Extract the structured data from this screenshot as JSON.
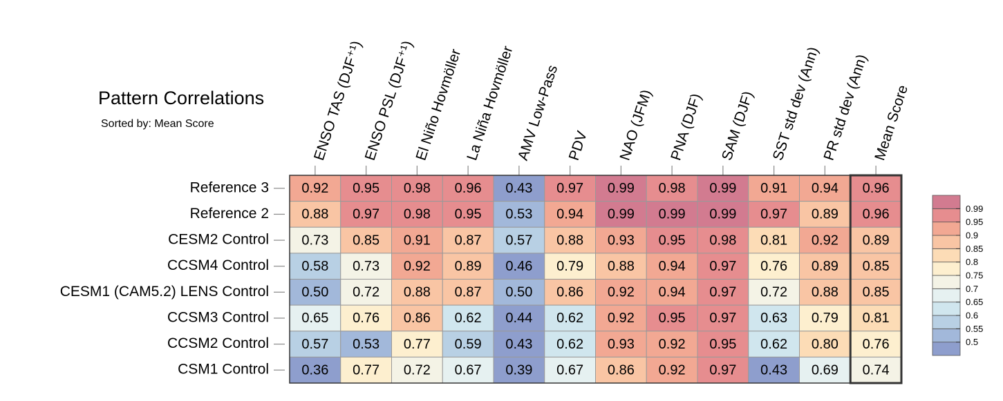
{
  "chart_data": {
    "type": "heatmap",
    "title": "Pattern Correlations",
    "subtitle": "Sorted by: Mean Score",
    "categories": [
      "ENSO TAS (DJF⁺¹)",
      "ENSO PSL (DJF⁺¹)",
      "El Niño Hovmöller",
      "La Niña Hovmöller",
      "AMV Low-Pass",
      "PDV",
      "NAO (JFM)",
      "PNA (DJF)",
      "SAM (DJF)",
      "SST std dev (Ann)",
      "PR std dev (Ann)",
      "Mean Score"
    ],
    "series": [
      {
        "name": "Reference 3",
        "values": [
          0.92,
          0.95,
          0.98,
          0.96,
          0.43,
          0.97,
          0.99,
          0.98,
          0.99,
          0.91,
          0.94,
          0.96
        ],
        "value_labels": [
          "0.92",
          "0.95",
          "0.98",
          "0.96",
          "0.43",
          "0.97",
          "0.99",
          "0.98",
          "0.99",
          "0.91",
          "0.94",
          "0.96"
        ]
      },
      {
        "name": "Reference 2",
        "values": [
          0.88,
          0.97,
          0.98,
          0.95,
          0.53,
          0.94,
          0.99,
          0.99,
          0.99,
          0.97,
          0.89,
          0.96
        ],
        "value_labels": [
          "0.88",
          "0.97",
          "0.98",
          "0.95",
          "0.53",
          "0.94",
          "0.99",
          "0.99",
          "0.99",
          "0.97",
          "0.89",
          "0.96"
        ]
      },
      {
        "name": "CESM2 Control",
        "values": [
          0.73,
          0.85,
          0.91,
          0.87,
          0.57,
          0.88,
          0.93,
          0.95,
          0.98,
          0.81,
          0.92,
          0.89
        ],
        "value_labels": [
          "0.73",
          "0.85",
          "0.91",
          "0.87",
          "0.57",
          "0.88",
          "0.93",
          "0.95",
          "0.98",
          "0.81",
          "0.92",
          "0.89"
        ]
      },
      {
        "name": "CCSM4 Control",
        "values": [
          0.58,
          0.73,
          0.92,
          0.89,
          0.46,
          0.79,
          0.88,
          0.94,
          0.97,
          0.76,
          0.89,
          0.85
        ],
        "value_labels": [
          "0.58",
          "0.73",
          "0.92",
          "0.89",
          "0.46",
          "0.79",
          "0.88",
          "0.94",
          "0.97",
          "0.76",
          "0.89",
          "0.85"
        ]
      },
      {
        "name": "CESM1 (CAM5.2) LENS Control",
        "values": [
          0.5,
          0.72,
          0.88,
          0.87,
          0.5,
          0.86,
          0.92,
          0.94,
          0.97,
          0.72,
          0.88,
          0.85
        ],
        "value_labels": [
          "0.50",
          "0.72",
          "0.88",
          "0.87",
          "0.50",
          "0.86",
          "0.92",
          "0.94",
          "0.97",
          "0.72",
          "0.88",
          "0.85"
        ]
      },
      {
        "name": "CCSM3 Control",
        "values": [
          0.65,
          0.76,
          0.86,
          0.62,
          0.44,
          0.62,
          0.92,
          0.95,
          0.97,
          0.63,
          0.79,
          0.81
        ],
        "value_labels": [
          "0.65",
          "0.76",
          "0.86",
          "0.62",
          "0.44",
          "0.62",
          "0.92",
          "0.95",
          "0.97",
          "0.63",
          "0.79",
          "0.81"
        ]
      },
      {
        "name": "CCSM2 Control",
        "values": [
          0.57,
          0.53,
          0.77,
          0.59,
          0.43,
          0.62,
          0.93,
          0.92,
          0.95,
          0.62,
          0.8,
          0.76
        ],
        "value_labels": [
          "0.57",
          "0.53",
          "0.77",
          "0.59",
          "0.43",
          "0.62",
          "0.93",
          "0.92",
          "0.95",
          "0.62",
          "0.80",
          "0.76"
        ]
      },
      {
        "name": "CSM1 Control",
        "values": [
          0.36,
          0.77,
          0.72,
          0.67,
          0.39,
          0.67,
          0.86,
          0.92,
          0.97,
          0.43,
          0.69,
          0.74
        ],
        "value_labels": [
          "0.36",
          "0.77",
          "0.72",
          "0.67",
          "0.39",
          "0.67",
          "0.86",
          "0.92",
          "0.97",
          "0.43",
          "0.69",
          "0.74"
        ]
      }
    ],
    "colorbar": {
      "levels": [
        0.5,
        0.55,
        0.6,
        0.65,
        0.7,
        0.75,
        0.8,
        0.85,
        0.9,
        0.95,
        0.99
      ],
      "colors": [
        "#8e9ecd",
        "#a2b8da",
        "#b8d0e4",
        "#d0e6ee",
        "#e6f1f1",
        "#f4f3e6",
        "#fdefcf",
        "#fcdcb6",
        "#f9c5a4",
        "#f2a893",
        "#e68d8f",
        "#d27b90"
      ]
    }
  }
}
